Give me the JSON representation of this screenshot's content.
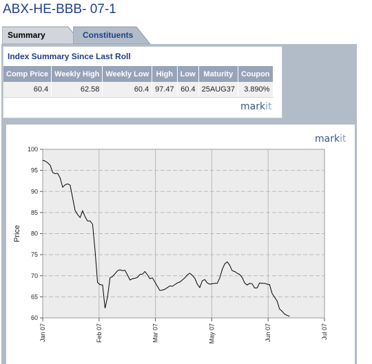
{
  "page_title": "ABX-HE-BBB- 07-1",
  "tabs": [
    {
      "label": "Summary",
      "active": true
    },
    {
      "label": "Constituents",
      "active": false
    }
  ],
  "summary": {
    "title": "Index Summary Since Last Roll",
    "headers": [
      "Comp Price",
      "Weekly High",
      "Weekly Low",
      "High",
      "Low",
      "Maturity",
      "Coupon"
    ],
    "row": [
      "60.4",
      "62.58",
      "60.4",
      "97.47",
      "60.4",
      "25AUG37",
      "3.890%"
    ]
  },
  "logo": {
    "text_main": "mark",
    "text_accent": "it"
  },
  "colors": {
    "title": "#1f3f8a",
    "header_bg": "#96a3b8",
    "panel_bg": "#b2bcc9",
    "line": "#000000"
  },
  "chart_data": {
    "type": "line",
    "ylabel": "Price",
    "ylim": [
      60,
      100
    ],
    "yticks": [
      60,
      65,
      70,
      75,
      80,
      85,
      90,
      95,
      100
    ],
    "xticks": [
      "Jan 07",
      "Feb 07",
      "Mar 07",
      "May 07",
      "Jun 07",
      "Jul 07"
    ],
    "grid": true,
    "series": [
      {
        "values": [
          97.4,
          97.2,
          96.8,
          96.2,
          94.5,
          94.2,
          94.3,
          93.2,
          91.0,
          91.6,
          91.8,
          91.5,
          88.5,
          85.5,
          84.5,
          83.8,
          85.4,
          84.0,
          83.0,
          83.0,
          82.2,
          76.0,
          68.4,
          67.9,
          67.8,
          62.3,
          65.0,
          69.5,
          69.8,
          70.5,
          71.2,
          71.4,
          71.2,
          71.3,
          70.2,
          69.0,
          69.3,
          69.4,
          69.6,
          70.3,
          70.4,
          71.0,
          70.2,
          69.3,
          69.5,
          68.5,
          67.5,
          66.5,
          66.6,
          66.8,
          67.2,
          67.6,
          67.5,
          67.9,
          68.3,
          68.5,
          69.0,
          69.5,
          70.2,
          70.6,
          70.1,
          69.4,
          68.0,
          67.2,
          68.8,
          69.1,
          68.3,
          68.0,
          68.1,
          68.2,
          68.2,
          69.5,
          71.5,
          72.8,
          73.3,
          72.5,
          71.2,
          71.0,
          70.6,
          70.3,
          69.6,
          68.3,
          67.8,
          68.2,
          68.1,
          67.1,
          67.1,
          68.3,
          68.2,
          68.2,
          68.0,
          67.9,
          65.8,
          64.9,
          64.0,
          62.1,
          61.6,
          60.9,
          60.6,
          60.4
        ]
      }
    ]
  }
}
